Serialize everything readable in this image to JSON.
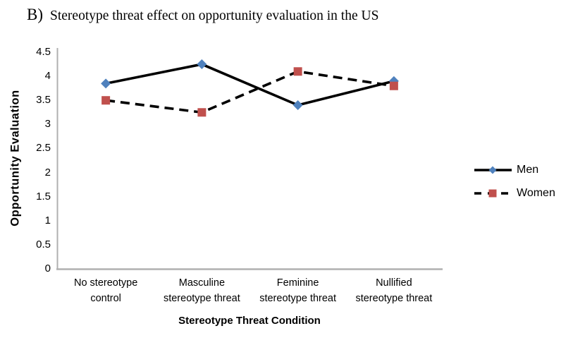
{
  "title": {
    "label": "B)",
    "text": "Stereotype threat effect on opportunity evaluation in the US"
  },
  "chart_data": {
    "type": "line",
    "title": "B) Stereotype threat effect on opportunity evaluation in the US",
    "categories": [
      "No stereotype control",
      "Masculine stereotype threat",
      "Feminine stereotype threat",
      "Nullified stereotype threat"
    ],
    "category_lines": [
      [
        "No stereotype",
        "control"
      ],
      [
        "Masculine",
        "stereotype threat"
      ],
      [
        "Feminine",
        "stereotype threat"
      ],
      [
        "Nullified",
        "stereotype threat"
      ]
    ],
    "series": [
      {
        "name": "Men",
        "values": [
          3.85,
          4.25,
          3.4,
          3.9
        ],
        "marker": "diamond",
        "marker_color": "#4f81bd",
        "line_color": "#000000",
        "line_style": "solid"
      },
      {
        "name": "Women",
        "values": [
          3.5,
          3.25,
          4.1,
          3.8
        ],
        "marker": "square",
        "marker_color": "#c0504d",
        "line_color": "#000000",
        "line_style": "dashed"
      }
    ],
    "xlabel": "Stereotype Threat Condition",
    "ylabel": "Opportunity Evaluation",
    "ylim": [
      0,
      4.5
    ],
    "ytick_step": 0.5,
    "yticks": [
      "4.5",
      "4",
      "3.5",
      "3",
      "2.5",
      "2",
      "1.5",
      "1",
      "0.5",
      "0"
    ],
    "grid": false,
    "legend_position": "right",
    "axis_color": "#b0b0b0"
  }
}
